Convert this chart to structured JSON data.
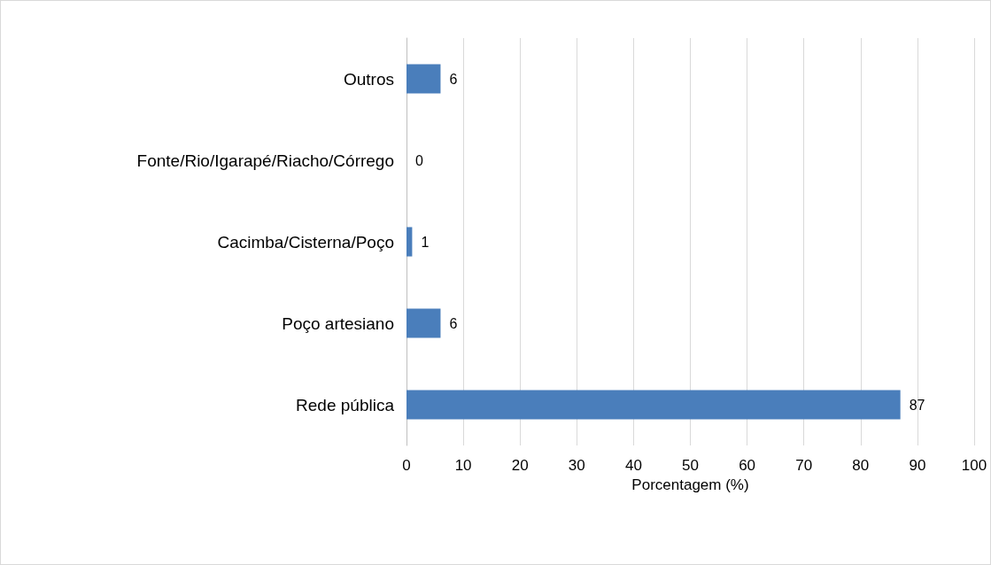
{
  "chart_data": {
    "type": "bar",
    "orientation": "horizontal",
    "xlabel": "Porcentagem (%)",
    "categories": [
      "Outros",
      "Fonte/Rio/Igarapé/Riacho/Córrego",
      "Cacimba/Cisterna/Poço",
      "Poço artesiano",
      "Rede pública"
    ],
    "values": [
      6,
      0,
      1,
      6,
      87
    ],
    "color": "#4a7ebb",
    "xlim": [
      0,
      100
    ],
    "xticks": [
      0,
      10,
      20,
      30,
      40,
      50,
      60,
      70,
      80,
      90,
      100
    ],
    "grid": "x",
    "data_labels": true
  }
}
